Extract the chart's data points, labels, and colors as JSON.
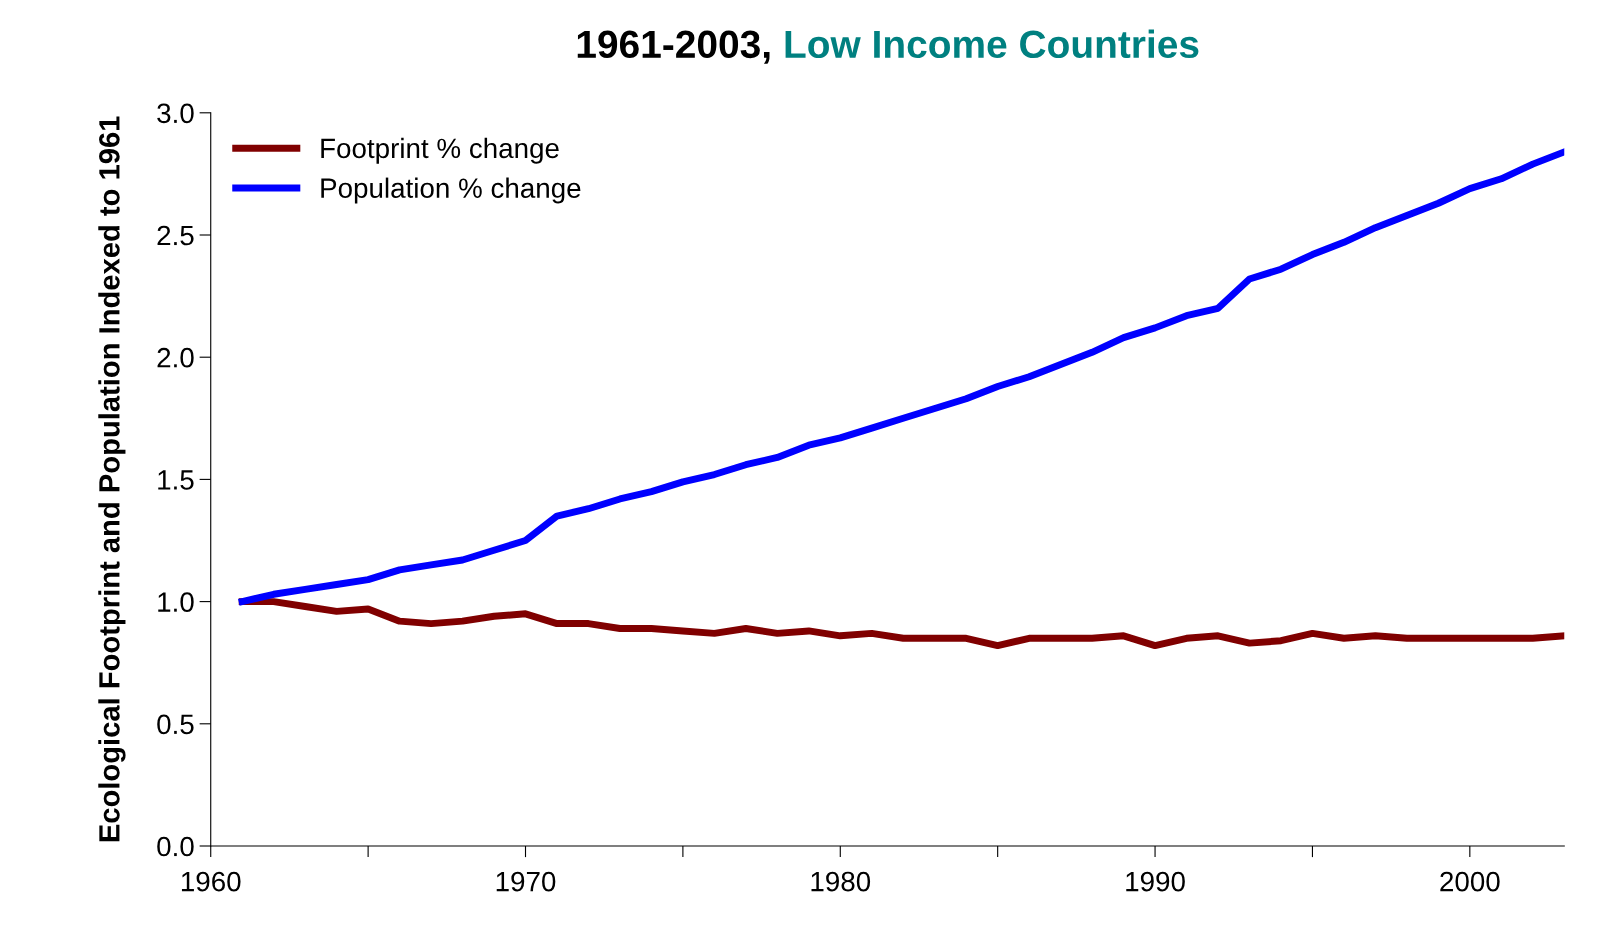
{
  "chart_data": {
    "type": "line",
    "title": "1961-2003, Low Income Countries",
    "ylabel": "Ecological Footprint and Population Indexed to 1961",
    "x": [
      1961,
      1962,
      1963,
      1964,
      1965,
      1966,
      1967,
      1968,
      1969,
      1970,
      1971,
      1972,
      1973,
      1974,
      1975,
      1976,
      1977,
      1978,
      1979,
      1980,
      1981,
      1982,
      1983,
      1984,
      1985,
      1986,
      1987,
      1988,
      1989,
      1990,
      1991,
      1992,
      1993,
      1994,
      1995,
      1996,
      1997,
      1998,
      1999,
      2000,
      2001,
      2002,
      2003
    ],
    "series": [
      {
        "name": "Footprint % change",
        "color": "#800000",
        "values": [
          1.0,
          1.0,
          0.98,
          0.96,
          0.97,
          0.92,
          0.91,
          0.92,
          0.94,
          0.95,
          0.91,
          0.91,
          0.89,
          0.89,
          0.88,
          0.87,
          0.89,
          0.87,
          0.88,
          0.86,
          0.87,
          0.85,
          0.85,
          0.85,
          0.82,
          0.85,
          0.85,
          0.85,
          0.86,
          0.82,
          0.85,
          0.86,
          0.83,
          0.84,
          0.87,
          0.85,
          0.86,
          0.85,
          0.85,
          0.85,
          0.85,
          0.85,
          0.86
        ]
      },
      {
        "name": "Population % change",
        "color": "#0000ff",
        "values": [
          1.0,
          1.03,
          1.05,
          1.07,
          1.09,
          1.13,
          1.15,
          1.17,
          1.21,
          1.25,
          1.35,
          1.38,
          1.42,
          1.45,
          1.49,
          1.52,
          1.56,
          1.59,
          1.64,
          1.67,
          1.71,
          1.75,
          1.79,
          1.83,
          1.88,
          1.92,
          1.97,
          2.02,
          2.08,
          2.12,
          2.17,
          2.2,
          2.32,
          2.36,
          2.42,
          2.47,
          2.53,
          2.58,
          2.63,
          2.69,
          2.73,
          2.79,
          2.84
        ]
      }
    ],
    "xlim": [
      1960,
      2003
    ],
    "xticks": [
      1960,
      {
        "value": 1965,
        "label": null
      },
      1970,
      {
        "value": 1975,
        "label": null
      },
      1980,
      {
        "value": 1985,
        "label": null
      },
      1990,
      {
        "value": 1995,
        "label": null
      },
      2000
    ],
    "ylim": [
      0,
      3
    ],
    "yticks": [
      {
        "value": 0,
        "label": "0.0"
      },
      {
        "value": 0.5,
        "label": "0.5"
      },
      {
        "value": 1,
        "label": "1.0"
      },
      {
        "value": 1.5,
        "label": "1.5"
      },
      {
        "value": 2,
        "label": "2.0"
      },
      {
        "value": 2.5,
        "label": "2.5"
      },
      {
        "value": 3,
        "label": "3.0"
      }
    ],
    "grid": false,
    "legend": "top left",
    "marker": "none",
    "line_style": "solid"
  }
}
